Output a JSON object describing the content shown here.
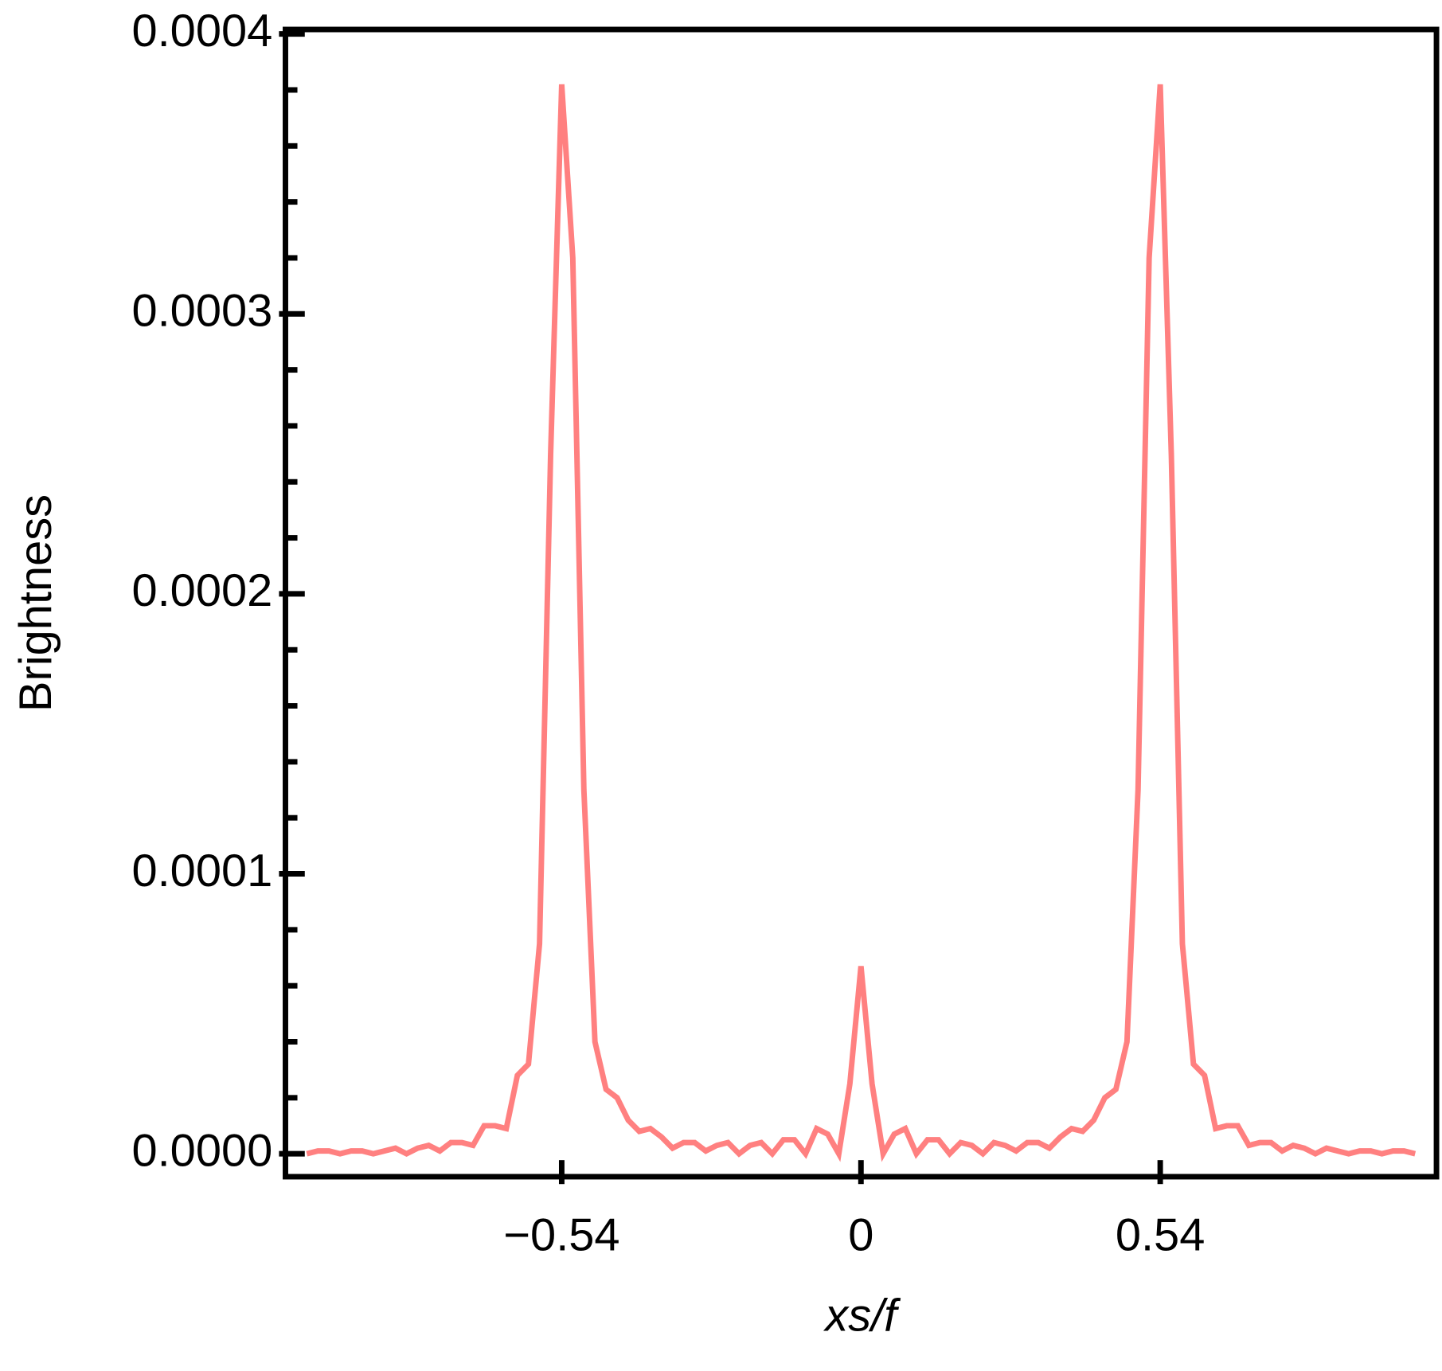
{
  "chart_data": {
    "type": "line",
    "xlabel": "xs/f",
    "ylabel": "Brightness",
    "x": [
      -1,
      -0.98,
      -0.96,
      -0.94,
      -0.92,
      -0.9,
      -0.88,
      -0.86,
      -0.84,
      -0.82,
      -0.8,
      -0.78,
      -0.76,
      -0.74,
      -0.72,
      -0.7,
      -0.68,
      -0.66,
      -0.64,
      -0.62,
      -0.6,
      -0.58,
      -0.56,
      -0.54,
      -0.52,
      -0.5,
      -0.48,
      -0.46,
      -0.44,
      -0.42,
      -0.4,
      -0.38,
      -0.36,
      -0.34,
      -0.32,
      -0.3,
      -0.28,
      -0.26,
      -0.24,
      -0.22,
      -0.2,
      -0.18,
      -0.16,
      -0.14,
      -0.12,
      -0.1,
      -0.08,
      -0.06,
      -0.04,
      -0.02,
      0,
      0.02,
      0.04,
      0.06,
      0.08,
      0.1,
      0.12,
      0.14,
      0.16,
      0.18,
      0.2,
      0.22,
      0.24,
      0.26,
      0.28,
      0.3,
      0.32,
      0.34,
      0.36,
      0.38,
      0.4,
      0.42,
      0.44,
      0.46,
      0.48,
      0.5,
      0.52,
      0.54,
      0.56,
      0.58,
      0.6,
      0.62,
      0.64,
      0.66,
      0.68,
      0.7,
      0.72,
      0.74,
      0.76,
      0.78,
      0.8,
      0.82,
      0.84,
      0.86,
      0.88,
      0.9,
      0.92,
      0.94,
      0.96,
      0.98,
      1
    ],
    "series": [
      {
        "color": "#ff8080",
        "values": [
          0,
          1e-06,
          1e-06,
          0,
          1e-06,
          1e-06,
          0,
          1e-06,
          2e-06,
          0,
          2e-06,
          3e-06,
          1e-06,
          4e-06,
          4e-06,
          3e-06,
          1e-05,
          1e-05,
          9e-06,
          2.8e-05,
          3.2e-05,
          7.5e-05,
          0.00025,
          0.000382,
          0.00032,
          0.00013,
          4e-05,
          2.3e-05,
          2e-05,
          1.2e-05,
          8e-06,
          9e-06,
          6e-06,
          2e-06,
          4e-06,
          4e-06,
          1e-06,
          3e-06,
          4e-06,
          0,
          3e-06,
          4e-06,
          0,
          5e-06,
          5e-06,
          0,
          9e-06,
          7e-06,
          0,
          2.5e-05,
          6.7e-05,
          2.5e-05,
          0,
          7e-06,
          9e-06,
          0,
          5e-06,
          5e-06,
          0,
          4e-06,
          3e-06,
          0,
          4e-06,
          3e-06,
          1e-06,
          4e-06,
          4e-06,
          2e-06,
          6e-06,
          9e-06,
          8e-06,
          1.2e-05,
          2e-05,
          2.3e-05,
          4e-05,
          0.00013,
          0.00032,
          0.000382,
          0.00025,
          7.5e-05,
          3.2e-05,
          2.8e-05,
          9e-06,
          1e-05,
          1e-05,
          3e-06,
          4e-06,
          4e-06,
          1e-06,
          3e-06,
          2e-06,
          0,
          2e-06,
          1e-06,
          0,
          1e-06,
          1e-06,
          0,
          1e-06,
          1e-06,
          0
        ]
      }
    ],
    "xlim": [
      -1.0385,
      1.0385
    ],
    "ylim": [
      -8.2e-06,
      0.0004016
    ],
    "xticks": [
      {
        "value": -0.54,
        "label": "−0.54"
      },
      0,
      {
        "value": 0.54,
        "label": "0.54"
      }
    ],
    "yticks": [
      {
        "value": 0,
        "label": "0.0000"
      },
      {
        "value": 0.0001,
        "label": "0.0001"
      },
      {
        "value": 0.0002,
        "label": "0.0002"
      },
      {
        "value": 0.0003,
        "label": "0.0003"
      },
      {
        "value": 0.0004,
        "label": "0.0004"
      }
    ],
    "yminorticks": [
      2e-05,
      4e-05,
      6e-05,
      8e-05,
      0.00012,
      0.00014,
      0.00016,
      0.00018,
      0.00022,
      0.00024,
      0.00026,
      0.00028,
      0.00032,
      0.00034,
      0.00036,
      0.00038
    ],
    "grid": false
  }
}
